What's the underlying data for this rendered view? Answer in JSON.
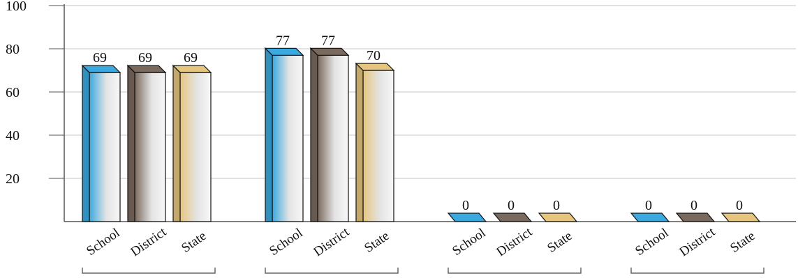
{
  "chart_data": {
    "type": "bar",
    "title": "",
    "xlabel": "",
    "ylabel": "",
    "ylim": [
      0,
      100
    ],
    "yticks": [
      20,
      40,
      60,
      80,
      100
    ],
    "grid": true,
    "legend": "none",
    "three_d": true,
    "group_series_labels": [
      "School",
      "District",
      "State"
    ],
    "groups": [
      {
        "values": [
          69,
          69,
          69
        ]
      },
      {
        "values": [
          77,
          77,
          70
        ]
      },
      {
        "values": [
          0,
          0,
          0
        ]
      },
      {
        "values": [
          0,
          0,
          0
        ]
      }
    ],
    "colors": {
      "School": "#3aa9e0",
      "District": "#7a6a5e",
      "State": "#e6c57e"
    }
  }
}
